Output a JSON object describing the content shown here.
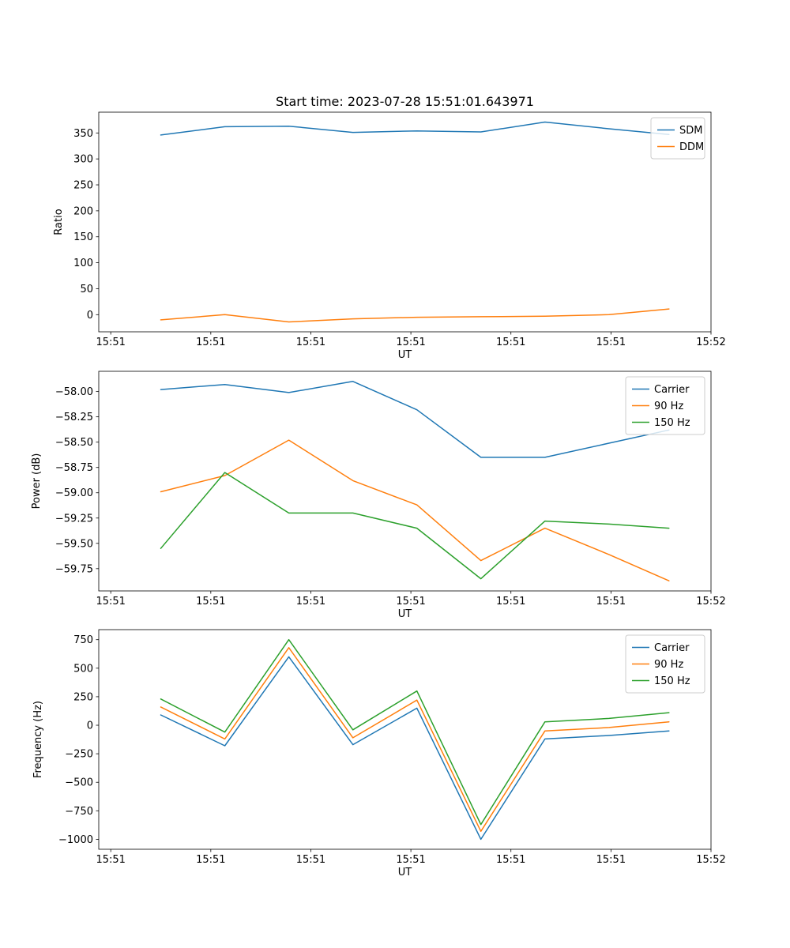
{
  "figure": {
    "background": "#ffffff",
    "text_color": "#000000"
  },
  "palette": {
    "blue": "#1f77b4",
    "orange": "#ff7f0e",
    "green": "#2ca02c",
    "legend_border": "#cccccc",
    "axis": "#000000"
  },
  "chart_data": [
    {
      "type": "line",
      "title": "Start time: 2023-07-28 15:51:01.643971",
      "xlabel": "UT",
      "ylabel": "Ratio",
      "x_unit": "seconds after 15:51:00 UT",
      "x": [
        5,
        11.4,
        17.8,
        24.2,
        30.6,
        37,
        43.4,
        49.8,
        55.8
      ],
      "xlim": [
        -1.2,
        60
      ],
      "xticks": {
        "positions": [
          0,
          10,
          20,
          30,
          40,
          50,
          60
        ],
        "labels": [
          "15:51",
          "15:51",
          "15:51",
          "15:51",
          "15:51",
          "15:51",
          "15:52"
        ]
      },
      "ylim": [
        -33,
        390
      ],
      "yticks": [
        0,
        50,
        100,
        150,
        200,
        250,
        300,
        350
      ],
      "ytick_labels": [
        "0",
        "50",
        "100",
        "150",
        "200",
        "250",
        "300",
        "350"
      ],
      "grid": false,
      "legend_position": "upper right",
      "legend": [
        "SDM",
        "DDM"
      ],
      "series": [
        {
          "name": "SDM",
          "color": "blue",
          "values": [
            346,
            362,
            363,
            351,
            354,
            352,
            371,
            358,
            347
          ]
        },
        {
          "name": "DDM",
          "color": "orange",
          "values": [
            -10,
            0,
            -14,
            -8,
            -5,
            -4,
            -3,
            0,
            11
          ]
        }
      ]
    },
    {
      "type": "line",
      "title": "",
      "xlabel": "UT",
      "ylabel": "Power (dB)",
      "x_unit": "seconds after 15:51:00 UT",
      "x": [
        5,
        11.4,
        17.8,
        24.2,
        30.6,
        37,
        43.4,
        49.8,
        55.8
      ],
      "xlim": [
        -1.2,
        60
      ],
      "xticks": {
        "positions": [
          0,
          10,
          20,
          30,
          40,
          50,
          60
        ],
        "labels": [
          "15:51",
          "15:51",
          "15:51",
          "15:51",
          "15:51",
          "15:51",
          "15:52"
        ]
      },
      "ylim": [
        -59.97,
        -57.8
      ],
      "yticks": [
        -59.75,
        -59.5,
        -59.25,
        -59,
        -58.75,
        -58.5,
        -58.25,
        -58
      ],
      "ytick_labels": [
        "−59.75",
        "−59.50",
        "−59.25",
        "−59.00",
        "−58.75",
        "−58.50",
        "−58.25",
        "−58.00"
      ],
      "grid": false,
      "legend_position": "upper right",
      "legend": [
        "Carrier",
        "90 Hz",
        "150 Hz"
      ],
      "series": [
        {
          "name": "Carrier",
          "color": "blue",
          "values": [
            -57.98,
            -57.93,
            -58.01,
            -57.9,
            -58.18,
            -58.65,
            -58.65,
            -58.51,
            -58.38
          ]
        },
        {
          "name": "90 Hz",
          "color": "orange",
          "values": [
            -58.99,
            -58.83,
            -58.48,
            -58.88,
            -59.12,
            -59.67,
            -59.35,
            -59.61,
            -59.87
          ]
        },
        {
          "name": "150 Hz",
          "color": "green",
          "values": [
            -59.55,
            -58.8,
            -59.2,
            -59.2,
            -59.35,
            -59.85,
            -59.28,
            -59.31,
            -59.35
          ]
        }
      ]
    },
    {
      "type": "line",
      "title": "",
      "xlabel": "UT",
      "ylabel": "Frequency (Hz)",
      "x_unit": "seconds after 15:51:00 UT",
      "x": [
        5,
        11.4,
        17.8,
        24.2,
        30.6,
        37,
        43.4,
        49.8,
        55.8
      ],
      "xlim": [
        -1.2,
        60
      ],
      "xticks": {
        "positions": [
          0,
          10,
          20,
          30,
          40,
          50,
          60
        ],
        "labels": [
          "15:51",
          "15:51",
          "15:51",
          "15:51",
          "15:51",
          "15:51",
          "15:52"
        ]
      },
      "ylim": [
        -1087,
        838
      ],
      "yticks": [
        -1000,
        -750,
        -500,
        -250,
        0,
        250,
        500,
        750
      ],
      "ytick_labels": [
        "−1000",
        "−750",
        "−500",
        "−250",
        "0",
        "250",
        "500",
        "750"
      ],
      "grid": false,
      "legend_position": "upper right",
      "legend": [
        "Carrier",
        "90 Hz",
        "150 Hz"
      ],
      "series": [
        {
          "name": "Carrier",
          "color": "blue",
          "values": [
            90,
            -180,
            600,
            -170,
            150,
            -1000,
            -120,
            -90,
            -50
          ]
        },
        {
          "name": "90 Hz",
          "color": "orange",
          "values": [
            160,
            -120,
            680,
            -110,
            220,
            -930,
            -50,
            -20,
            30
          ]
        },
        {
          "name": "150 Hz",
          "color": "green",
          "values": [
            230,
            -60,
            750,
            -40,
            300,
            -870,
            30,
            60,
            110
          ]
        }
      ]
    }
  ]
}
